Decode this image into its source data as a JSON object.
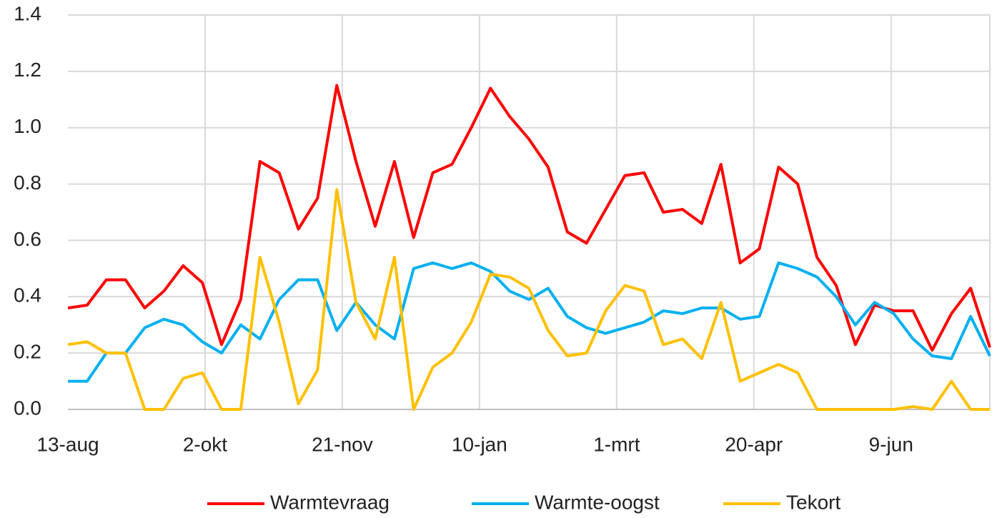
{
  "chart_data": {
    "type": "line",
    "x": [
      0,
      7,
      14,
      21,
      28,
      35,
      42,
      49,
      56,
      63,
      70,
      77,
      84,
      91,
      98,
      105,
      112,
      119,
      126,
      133,
      140,
      147,
      154,
      161,
      168,
      175,
      182,
      189,
      196,
      203,
      210,
      217,
      224,
      231,
      238,
      245,
      252,
      259,
      266,
      273,
      280,
      287,
      294,
      301,
      308,
      315,
      322,
      329,
      336
    ],
    "xlim": [
      0,
      336
    ],
    "xticks": [
      {
        "value": 0,
        "label": "13-aug"
      },
      {
        "value": 50,
        "label": "2-okt"
      },
      {
        "value": 100,
        "label": "21-nov"
      },
      {
        "value": 150,
        "label": "10-jan"
      },
      {
        "value": 200,
        "label": "1-mrt"
      },
      {
        "value": 250,
        "label": "20-apr"
      },
      {
        "value": 300,
        "label": "9-jun"
      }
    ],
    "ylim": [
      0,
      1.4
    ],
    "yticks": [
      {
        "value": 0,
        "label": "0.0"
      },
      0.2,
      0.4,
      0.6,
      0.8,
      {
        "value": 1,
        "label": "1.0"
      },
      1.2,
      1.4
    ],
    "grid": true,
    "legend": "bottom",
    "series": [
      {
        "name": "Warmtevraag",
        "color": "#ff0000",
        "values": [
          0.36,
          0.37,
          0.46,
          0.46,
          0.36,
          0.42,
          0.51,
          0.45,
          0.23,
          0.39,
          0.88,
          0.84,
          0.64,
          0.75,
          1.15,
          0.88,
          0.65,
          0.88,
          0.61,
          0.84,
          0.87,
          1.0,
          1.14,
          1.04,
          0.96,
          0.86,
          0.63,
          0.59,
          0.71,
          0.83,
          0.84,
          0.7,
          0.71,
          0.66,
          0.87,
          0.52,
          0.57,
          0.86,
          0.8,
          0.54,
          0.44,
          0.23,
          0.37,
          0.35,
          0.35,
          0.21,
          0.34,
          0.43,
          0.22
        ]
      },
      {
        "name": "Warmte-oogst",
        "color": "#00b0f0",
        "values": [
          0.1,
          0.1,
          0.2,
          0.2,
          0.29,
          0.32,
          0.3,
          0.24,
          0.2,
          0.3,
          0.25,
          0.39,
          0.46,
          0.46,
          0.28,
          0.38,
          0.3,
          0.25,
          0.5,
          0.52,
          0.5,
          0.52,
          0.49,
          0.42,
          0.39,
          0.43,
          0.33,
          0.29,
          0.27,
          0.29,
          0.31,
          0.35,
          0.34,
          0.36,
          0.36,
          0.32,
          0.33,
          0.52,
          0.5,
          0.47,
          0.4,
          0.3,
          0.38,
          0.34,
          0.25,
          0.19,
          0.18,
          0.33,
          0.19
        ]
      },
      {
        "name": "Tekort",
        "color": "#ffc000",
        "values": [
          0.23,
          0.24,
          0.2,
          0.2,
          0,
          0,
          0.11,
          0.13,
          0,
          0,
          0.54,
          0.31,
          0.02,
          0.14,
          0.78,
          0.38,
          0.25,
          0.54,
          0,
          0.15,
          0.2,
          0.31,
          0.48,
          0.47,
          0.43,
          0.28,
          0.19,
          0.2,
          0.35,
          0.44,
          0.42,
          0.23,
          0.25,
          0.18,
          0.38,
          0.1,
          0.13,
          0.16,
          0.13,
          0,
          0,
          0,
          0,
          0,
          0.01,
          0,
          0.1,
          0,
          0
        ]
      }
    ]
  }
}
